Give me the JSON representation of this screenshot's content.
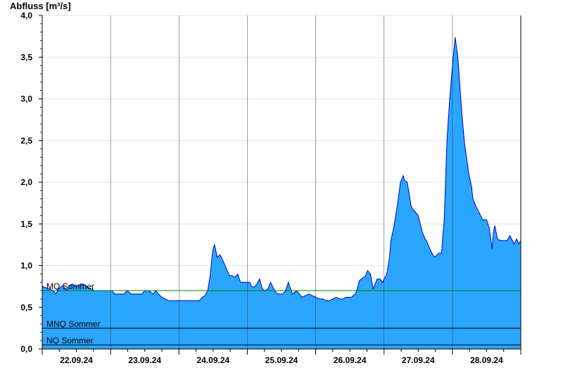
{
  "chart_data": {
    "type": "area",
    "title": "",
    "ylabel": "Abfluss [m³/s]",
    "xlabel": "",
    "ylim": [
      0,
      4.0
    ],
    "yticks": [
      {
        "value": 0.0,
        "label": "0,0"
      },
      {
        "value": 0.5,
        "label": "0,5"
      },
      {
        "value": 1.0,
        "label": "1,0"
      },
      {
        "value": 1.5,
        "label": "1,5"
      },
      {
        "value": 2.0,
        "label": "2,0"
      },
      {
        "value": 2.5,
        "label": "2,5"
      },
      {
        "value": 3.0,
        "label": "3,0"
      },
      {
        "value": 3.5,
        "label": "3,5"
      },
      {
        "value": 4.0,
        "label": "4,0"
      }
    ],
    "xlim": [
      0,
      7
    ],
    "xticks": [
      {
        "day": 0.5,
        "label": "22.09.24"
      },
      {
        "day": 1.5,
        "label": "23.09.24"
      },
      {
        "day": 2.5,
        "label": "24.09.24"
      },
      {
        "day": 3.5,
        "label": "25.09.24"
      },
      {
        "day": 4.5,
        "label": "26.09.24"
      },
      {
        "day": 5.5,
        "label": "27.09.24"
      },
      {
        "day": 6.5,
        "label": "28.09.24"
      }
    ],
    "day_boundaries": [
      1,
      2,
      3,
      4,
      5,
      6
    ],
    "grid": true,
    "colors": {
      "fill": "#2aa6ff",
      "line": "#0000cc",
      "mq": "#008000",
      "mnq": "#000000",
      "nq": "#000000"
    },
    "reference_lines": [
      {
        "label": "MQ Sommer",
        "value": 0.7,
        "color": "#008000"
      },
      {
        "label": "MNQ Sommer",
        "value": 0.25,
        "color": "#000000"
      },
      {
        "label": "NQ Sommer",
        "value": 0.05,
        "color": "#000000"
      }
    ],
    "series": [
      {
        "x": [
          0.0,
          0.1,
          0.16,
          0.2,
          0.24,
          0.3,
          0.36,
          0.4,
          0.44,
          0.5,
          0.56,
          0.6,
          0.66,
          0.72,
          0.76,
          0.8,
          0.9,
          0.99,
          1.02,
          1.06,
          1.14,
          1.2,
          1.24,
          1.3,
          1.4,
          1.46,
          1.5,
          1.56,
          1.62,
          1.66,
          1.7,
          1.75,
          1.8,
          1.85,
          1.92,
          2.0,
          2.1,
          2.2,
          2.3,
          2.34,
          2.38,
          2.42,
          2.46,
          2.48,
          2.5,
          2.52,
          2.54,
          2.56,
          2.6,
          2.62,
          2.66,
          2.7,
          2.74,
          2.78,
          2.82,
          2.86,
          2.9,
          2.96,
          3.04,
          3.06,
          3.1,
          3.14,
          3.18,
          3.22,
          3.26,
          3.3,
          3.34,
          3.4,
          3.44,
          3.48,
          3.52,
          3.56,
          3.6,
          3.66,
          3.72,
          3.8,
          3.9,
          4.0,
          4.06,
          4.1,
          4.16,
          4.2,
          4.3,
          4.36,
          4.4,
          4.44,
          4.48,
          4.52,
          4.58,
          4.6,
          4.64,
          4.7,
          4.72,
          4.76,
          4.8,
          4.84,
          4.9,
          4.94,
          4.98,
          5.0,
          5.04,
          5.08,
          5.1,
          5.14,
          5.16,
          5.2,
          5.24,
          5.28,
          5.3,
          5.34,
          5.4,
          5.5,
          5.56,
          5.6,
          5.62,
          5.64,
          5.66,
          5.7,
          5.74,
          5.8,
          5.84,
          5.88,
          5.92,
          5.96,
          6.0,
          6.04,
          6.08,
          6.14,
          6.18,
          6.24,
          6.28,
          6.3,
          6.34,
          6.4,
          6.44,
          6.5,
          6.54,
          6.58,
          6.6,
          6.62,
          6.64,
          6.66,
          6.7,
          6.74,
          6.8,
          6.84,
          6.88,
          6.9,
          6.94,
          6.97,
          7.0
        ],
        "y": [
          0.75,
          0.72,
          0.7,
          0.66,
          0.72,
          0.76,
          0.7,
          0.76,
          0.78,
          0.74,
          0.78,
          0.78,
          0.74,
          0.72,
          0.7,
          0.7,
          0.7,
          0.7,
          0.7,
          0.66,
          0.66,
          0.66,
          0.7,
          0.66,
          0.66,
          0.66,
          0.7,
          0.7,
          0.66,
          0.7,
          0.66,
          0.62,
          0.6,
          0.58,
          0.58,
          0.58,
          0.58,
          0.58,
          0.58,
          0.62,
          0.64,
          0.7,
          0.9,
          1.08,
          1.2,
          1.25,
          1.18,
          1.1,
          1.13,
          1.1,
          1.03,
          0.95,
          0.88,
          0.88,
          0.86,
          0.9,
          0.8,
          0.8,
          0.8,
          0.75,
          0.74,
          0.78,
          0.84,
          0.72,
          0.7,
          0.72,
          0.8,
          0.7,
          0.66,
          0.66,
          0.66,
          0.7,
          0.8,
          0.66,
          0.7,
          0.62,
          0.66,
          0.62,
          0.6,
          0.6,
          0.58,
          0.58,
          0.62,
          0.6,
          0.6,
          0.62,
          0.62,
          0.62,
          0.66,
          0.7,
          0.82,
          0.86,
          0.86,
          0.94,
          0.9,
          0.72,
          0.84,
          0.84,
          0.8,
          0.84,
          0.9,
          1.1,
          1.3,
          1.45,
          1.55,
          1.75,
          2.0,
          2.08,
          2.02,
          2.0,
          1.7,
          1.6,
          1.4,
          1.32,
          1.3,
          1.26,
          1.22,
          1.15,
          1.1,
          1.15,
          1.15,
          1.55,
          2.5,
          3.0,
          3.4,
          3.74,
          3.5,
          2.8,
          2.45,
          2.1,
          1.95,
          1.8,
          1.72,
          1.62,
          1.55,
          1.55,
          1.45,
          1.2,
          1.4,
          1.48,
          1.4,
          1.32,
          1.3,
          1.3,
          1.3,
          1.36,
          1.3,
          1.26,
          1.32,
          1.26,
          1.3
        ]
      }
    ]
  }
}
